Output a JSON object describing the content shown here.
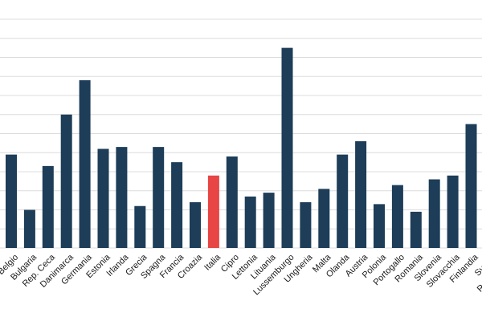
{
  "chart_data": {
    "type": "bar",
    "title": "",
    "xlabel": "",
    "ylabel": "",
    "ylim": [
      0,
      12
    ],
    "grid": true,
    "y_tick_labels_visible": false,
    "categories": [
      "Belgio",
      "Bulgaria",
      "Rep. Ceca",
      "Danimarca",
      "Germania",
      "Estonia",
      "Irlanda",
      "Grecia",
      "Spagna",
      "Francia",
      "Croazia",
      "Italia",
      "Cipro",
      "Lettonia",
      "Lituania",
      "Lussemburgo",
      "Ungheria",
      "Malta",
      "Olanda",
      "Austria",
      "Polonia",
      "Portogallo",
      "Romania",
      "Slovenia",
      "Slovacchia",
      "Finlandia",
      "Svezia",
      "Regno Unito"
    ],
    "values": [
      4.9,
      2.0,
      4.3,
      7.0,
      8.8,
      5.2,
      5.3,
      2.2,
      5.3,
      4.5,
      2.4,
      3.8,
      4.8,
      2.7,
      2.9,
      10.5,
      2.4,
      3.1,
      4.9,
      5.6,
      2.3,
      3.3,
      1.9,
      3.6,
      3.8,
      6.5,
      0,
      0
    ],
    "highlight": "Italia",
    "colors": {
      "bar": "#1d3d58",
      "highlight": "#e84545",
      "grid": "#dcdcdc"
    }
  }
}
